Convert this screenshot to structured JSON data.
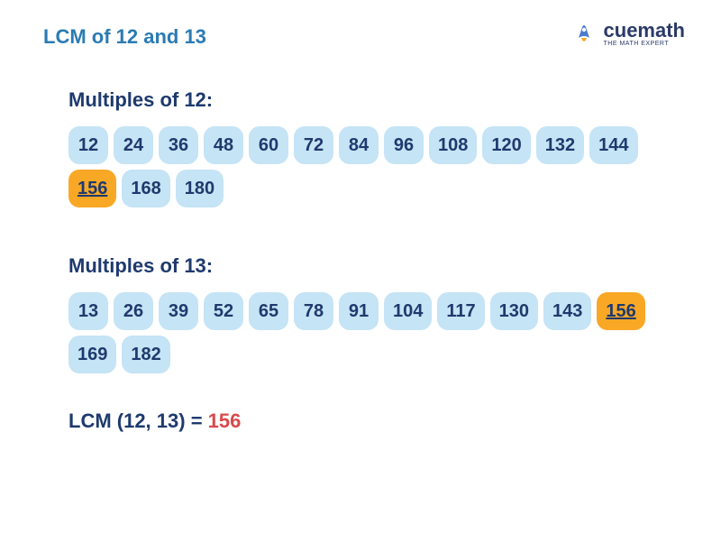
{
  "title": "LCM of 12 and 13",
  "logo": {
    "brand": "cuemath",
    "tagline": "THE MATH EXPERT",
    "brand_color": "#2b3a67",
    "rocket_body": "#4a7bd0",
    "rocket_flame": "#f9a826"
  },
  "colors": {
    "title_color": "#2b7bb3",
    "heading_color": "#1e3a6e",
    "chip_bg": "#c5e4f5",
    "chip_text": "#1e3a6e",
    "highlight_bg": "#f9a826",
    "highlight_text": "#1e3a6e",
    "result_label": "#1e3a6e",
    "result_value": "#d94a4a",
    "background": "#ffffff"
  },
  "sections": [
    {
      "heading": "Multiples of 12:",
      "items": [
        {
          "v": "12",
          "hl": false
        },
        {
          "v": "24",
          "hl": false
        },
        {
          "v": "36",
          "hl": false
        },
        {
          "v": "48",
          "hl": false
        },
        {
          "v": "60",
          "hl": false
        },
        {
          "v": "72",
          "hl": false
        },
        {
          "v": "84",
          "hl": false
        },
        {
          "v": "96",
          "hl": false
        },
        {
          "v": "108",
          "hl": false
        },
        {
          "v": "120",
          "hl": false
        },
        {
          "v": "132",
          "hl": false
        },
        {
          "v": "144",
          "hl": false
        },
        {
          "v": "156",
          "hl": true
        },
        {
          "v": "168",
          "hl": false
        },
        {
          "v": "180",
          "hl": false
        }
      ]
    },
    {
      "heading": "Multiples of 13:",
      "items": [
        {
          "v": "13",
          "hl": false
        },
        {
          "v": "26",
          "hl": false
        },
        {
          "v": "39",
          "hl": false
        },
        {
          "v": "52",
          "hl": false
        },
        {
          "v": "65",
          "hl": false
        },
        {
          "v": "78",
          "hl": false
        },
        {
          "v": "91",
          "hl": false
        },
        {
          "v": "104",
          "hl": false
        },
        {
          "v": "117",
          "hl": false
        },
        {
          "v": "130",
          "hl": false
        },
        {
          "v": "143",
          "hl": false
        },
        {
          "v": "156",
          "hl": true
        },
        {
          "v": "169",
          "hl": false
        },
        {
          "v": "182",
          "hl": false
        }
      ]
    }
  ],
  "result": {
    "label": "LCM (12, 13) = ",
    "value": "156"
  }
}
